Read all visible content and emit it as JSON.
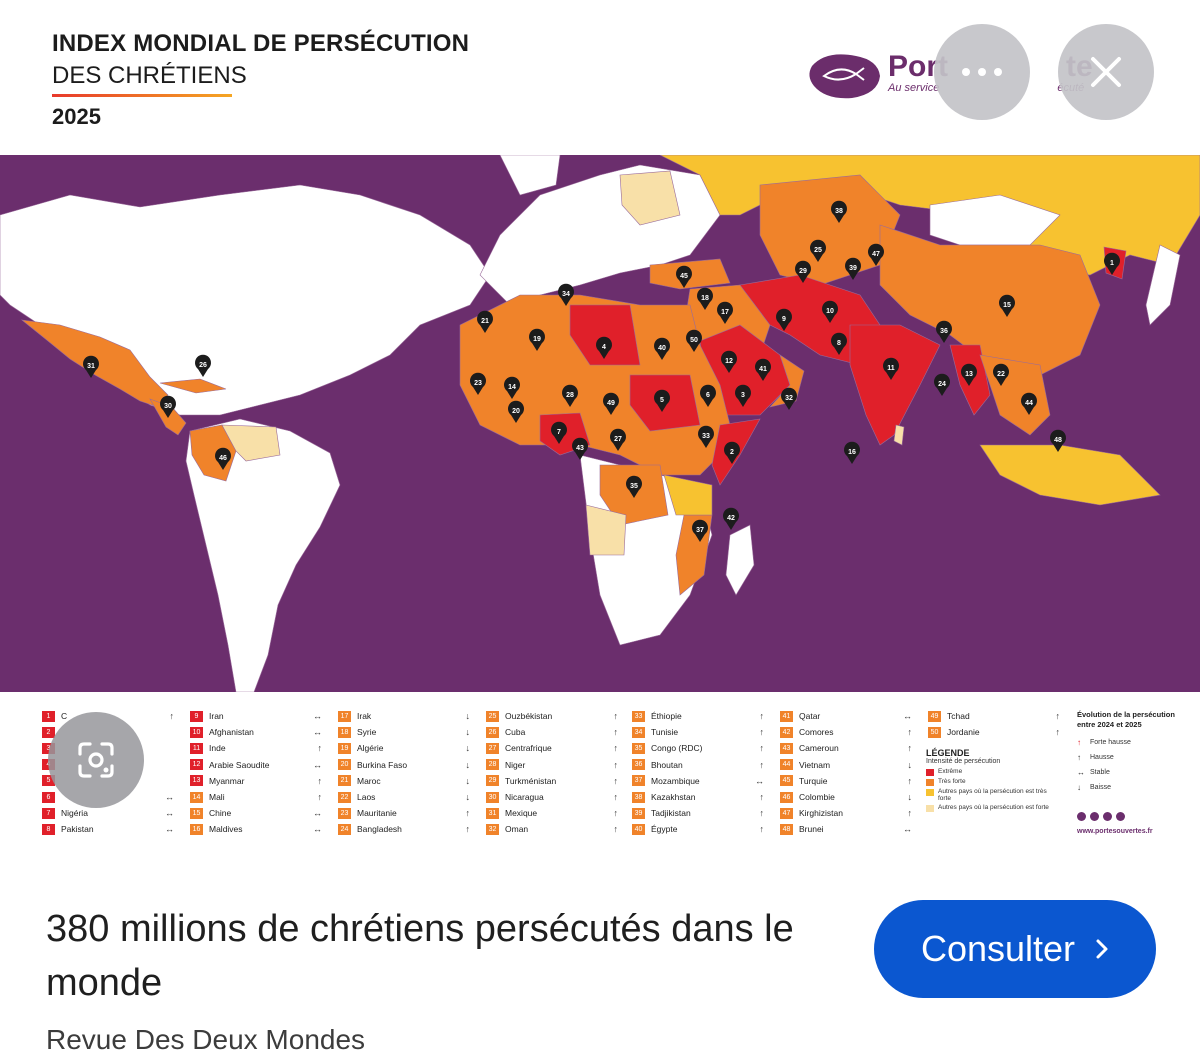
{
  "header": {
    "title_line1": "INDEX MONDIAL DE PERSÉCUTION",
    "title_line2": "DES CHRÉTIENS",
    "year": "2025",
    "logo_name": "Port",
    "logo_name_end": "te",
    "logo_tagline": "Au service",
    "logo_tagline_end": "écuté"
  },
  "colors": {
    "background_purple": "#6b2e6d",
    "extreme": "#e0202a",
    "tres_forte": "#f0832a",
    "autres_tres_forte": "#f7c230",
    "autres_forte": "#f8e0a8",
    "accent_blue": "#0b57d0"
  },
  "map_markers": [
    {
      "n": "1"
    },
    {
      "n": "2"
    },
    {
      "n": "3"
    },
    {
      "n": "4"
    },
    {
      "n": "5"
    },
    {
      "n": "6"
    },
    {
      "n": "7"
    },
    {
      "n": "8"
    },
    {
      "n": "9"
    },
    {
      "n": "10"
    },
    {
      "n": "11"
    },
    {
      "n": "12"
    },
    {
      "n": "13"
    },
    {
      "n": "14"
    },
    {
      "n": "15"
    },
    {
      "n": "16"
    },
    {
      "n": "17"
    },
    {
      "n": "18"
    },
    {
      "n": "19"
    },
    {
      "n": "20"
    },
    {
      "n": "21"
    },
    {
      "n": "22"
    },
    {
      "n": "23"
    },
    {
      "n": "24"
    },
    {
      "n": "25"
    },
    {
      "n": "26"
    },
    {
      "n": "27"
    },
    {
      "n": "28"
    },
    {
      "n": "29"
    },
    {
      "n": "30"
    },
    {
      "n": "31"
    },
    {
      "n": "32"
    },
    {
      "n": "33"
    },
    {
      "n": "34"
    },
    {
      "n": "35"
    },
    {
      "n": "36"
    },
    {
      "n": "37"
    },
    {
      "n": "38"
    },
    {
      "n": "39"
    },
    {
      "n": "40"
    },
    {
      "n": "41"
    },
    {
      "n": "42"
    },
    {
      "n": "43"
    },
    {
      "n": "44"
    },
    {
      "n": "45"
    },
    {
      "n": "46"
    },
    {
      "n": "47"
    },
    {
      "n": "48"
    },
    {
      "n": "49"
    },
    {
      "n": "50"
    }
  ],
  "legend_columns": [
    [
      {
        "n": "1",
        "name": "C",
        "trend": "↑",
        "level": "red"
      },
      {
        "n": "2",
        "name": "",
        "trend": "",
        "level": "red"
      },
      {
        "n": "3",
        "name": "",
        "trend": "",
        "level": "red"
      },
      {
        "n": "4",
        "name": "",
        "trend": "",
        "level": "red"
      },
      {
        "n": "5",
        "name": "",
        "trend": "",
        "level": "red"
      },
      {
        "n": "6",
        "name": "",
        "trend": "↔",
        "level": "red"
      },
      {
        "n": "7",
        "name": "Nigéria",
        "trend": "↔",
        "level": "red"
      },
      {
        "n": "8",
        "name": "Pakistan",
        "trend": "↔",
        "level": "red"
      }
    ],
    [
      {
        "n": "9",
        "name": "Iran",
        "trend": "↔",
        "level": "red"
      },
      {
        "n": "10",
        "name": "Afghanistan",
        "trend": "↔",
        "level": "red"
      },
      {
        "n": "11",
        "name": "Inde",
        "trend": "↑",
        "level": "red"
      },
      {
        "n": "12",
        "name": "Arabie Saoudite",
        "trend": "↔",
        "level": "red"
      },
      {
        "n": "13",
        "name": "Myanmar",
        "trend": "↑",
        "level": "red"
      },
      {
        "n": "14",
        "name": "Mali",
        "trend": "↑",
        "level": "org"
      },
      {
        "n": "15",
        "name": "Chine",
        "trend": "↔",
        "level": "org"
      },
      {
        "n": "16",
        "name": "Maldives",
        "trend": "↔",
        "level": "org"
      }
    ],
    [
      {
        "n": "17",
        "name": "Irak",
        "trend": "↓",
        "level": "org"
      },
      {
        "n": "18",
        "name": "Syrie",
        "trend": "↓",
        "level": "org"
      },
      {
        "n": "19",
        "name": "Algérie",
        "trend": "↓",
        "level": "org"
      },
      {
        "n": "20",
        "name": "Burkina Faso",
        "trend": "↓",
        "level": "org"
      },
      {
        "n": "21",
        "name": "Maroc",
        "trend": "↓",
        "level": "org"
      },
      {
        "n": "22",
        "name": "Laos",
        "trend": "↓",
        "level": "org"
      },
      {
        "n": "23",
        "name": "Mauritanie",
        "trend": "↑",
        "level": "org"
      },
      {
        "n": "24",
        "name": "Bangladesh",
        "trend": "↑",
        "level": "org"
      }
    ],
    [
      {
        "n": "25",
        "name": "Ouzbékistan",
        "trend": "↑",
        "level": "org"
      },
      {
        "n": "26",
        "name": "Cuba",
        "trend": "↑",
        "level": "org"
      },
      {
        "n": "27",
        "name": "Centrafrique",
        "trend": "↑",
        "level": "org"
      },
      {
        "n": "28",
        "name": "Niger",
        "trend": "↑",
        "level": "org"
      },
      {
        "n": "29",
        "name": "Turkménistan",
        "trend": "↑",
        "level": "org"
      },
      {
        "n": "30",
        "name": "Nicaragua",
        "trend": "↑",
        "level": "org"
      },
      {
        "n": "31",
        "name": "Mexique",
        "trend": "↑",
        "level": "org"
      },
      {
        "n": "32",
        "name": "Oman",
        "trend": "↑",
        "level": "org"
      }
    ],
    [
      {
        "n": "33",
        "name": "Éthiopie",
        "trend": "↑",
        "level": "org"
      },
      {
        "n": "34",
        "name": "Tunisie",
        "trend": "↑",
        "level": "org"
      },
      {
        "n": "35",
        "name": "Congo (RDC)",
        "trend": "↑",
        "level": "org"
      },
      {
        "n": "36",
        "name": "Bhoutan",
        "trend": "↑",
        "level": "org"
      },
      {
        "n": "37",
        "name": "Mozambique",
        "trend": "↔",
        "level": "org"
      },
      {
        "n": "38",
        "name": "Kazakhstan",
        "trend": "↑",
        "level": "org"
      },
      {
        "n": "39",
        "name": "Tadjikistan",
        "trend": "↑",
        "level": "org"
      },
      {
        "n": "40",
        "name": "Égypte",
        "trend": "↑",
        "level": "org"
      }
    ],
    [
      {
        "n": "41",
        "name": "Qatar",
        "trend": "↔",
        "level": "org"
      },
      {
        "n": "42",
        "name": "Comores",
        "trend": "↑",
        "level": "org"
      },
      {
        "n": "43",
        "name": "Cameroun",
        "trend": "↑",
        "level": "org"
      },
      {
        "n": "44",
        "name": "Vietnam",
        "trend": "↓",
        "level": "org"
      },
      {
        "n": "45",
        "name": "Turquie",
        "trend": "↑",
        "level": "org"
      },
      {
        "n": "46",
        "name": "Colombie",
        "trend": "↓",
        "level": "org"
      },
      {
        "n": "47",
        "name": "Kirghizistan",
        "trend": "↑",
        "level": "org"
      },
      {
        "n": "48",
        "name": "Brunei",
        "trend": "↔",
        "level": "org"
      }
    ],
    [
      {
        "n": "49",
        "name": "Tchad",
        "trend": "↑",
        "level": "org"
      },
      {
        "n": "50",
        "name": "Jordanie",
        "trend": "↑",
        "level": "org"
      }
    ]
  ],
  "legend": {
    "title": "LÉGENDE",
    "subtitle": "Intensité de persécution",
    "items": [
      {
        "label": "Extrême",
        "color": "#e0202a"
      },
      {
        "label": "Très forte",
        "color": "#f0832a"
      },
      {
        "label": "Autres pays où la persécution est très forte",
        "color": "#f7c230"
      },
      {
        "label": "Autres pays où la persécution est forte",
        "color": "#f8e0a8"
      }
    ]
  },
  "evolution": {
    "title": "Évolution de la persécution entre 2024 et 2025",
    "items": [
      {
        "arrow": "↑",
        "label": "Forte hausse"
      },
      {
        "arrow": "↑",
        "label": "Hausse"
      },
      {
        "arrow": "↔",
        "label": "Stable"
      },
      {
        "arrow": "↓",
        "label": "Baisse"
      }
    ],
    "website": "www.portesouvertes.fr"
  },
  "card": {
    "title": "380 millions de chrétiens persécutés dans le monde",
    "button_label": "Consulter",
    "source": "Revue Des Deux Mondes"
  },
  "icons": {
    "more": "more-horizontal-icon",
    "close": "close-icon",
    "lens": "google-lens-icon",
    "chevron": "chevron-right-icon"
  }
}
